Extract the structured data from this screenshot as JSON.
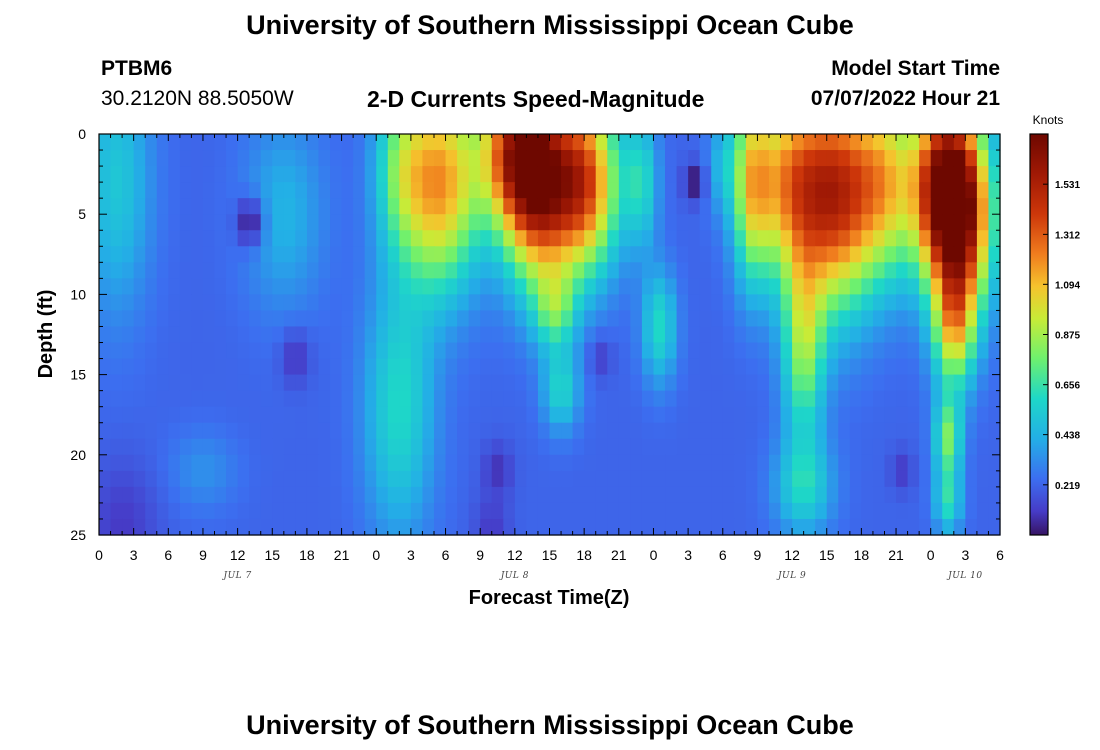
{
  "page": {
    "title_top": "University of Southern Mississippi Ocean Cube",
    "title_bottom": "University of Southern Mississippi Ocean Cube",
    "station_id": "PTBM6",
    "station_coords": "30.2120N  88.5050W",
    "plot_title": "2-D Currents Speed-Magnitude",
    "model_start_label": "Model Start Time",
    "model_start_value": "07/07/2022 Hour 21"
  },
  "chart_data": {
    "type": "heatmap",
    "title": "2-D Currents Speed-Magnitude",
    "xlabel": "Forecast Time(Z)",
    "ylabel": "Depth (ft)",
    "x_tick_labels": [
      "0",
      "3",
      "6",
      "9",
      "12",
      "15",
      "18",
      "21",
      "0",
      "3",
      "6",
      "9",
      "12",
      "15",
      "18",
      "21",
      "0",
      "3",
      "6",
      "9",
      "12",
      "15",
      "18",
      "21",
      "0",
      "3",
      "6"
    ],
    "day_labels": [
      {
        "label": "JUL 7",
        "hour": 12
      },
      {
        "label": "JUL 8",
        "hour": 36
      },
      {
        "label": "JUL 9",
        "hour": 60
      },
      {
        "label": "JUL 10",
        "hour": 75
      }
    ],
    "y_ticks": [
      0,
      5,
      10,
      15,
      20,
      25
    ],
    "xlim": [
      0,
      78
    ],
    "ylim": [
      0,
      25
    ],
    "colorbar": {
      "unit": "Knots",
      "ticks": [
        0.219,
        0.438,
        0.656,
        0.875,
        1.094,
        1.312,
        1.531
      ],
      "range": [
        0,
        1.75
      ]
    },
    "features": [
      {
        "h": 1.5,
        "d": 3,
        "sh": 3,
        "sd": 8,
        "a": 0.3
      },
      {
        "h": 16,
        "d": 5,
        "sh": 3.5,
        "sd": 6,
        "a": 0.22
      },
      {
        "h": 26,
        "d": 2,
        "sh": 2.2,
        "sd": 5,
        "a": 0.35
      },
      {
        "h": 26,
        "d": 17,
        "sh": 3,
        "sd": 8,
        "a": 0.38
      },
      {
        "h": 29.5,
        "d": 3,
        "sh": 3.5,
        "sd": 6.5,
        "a": 0.95
      },
      {
        "h": 36,
        "d": 1,
        "sh": 3,
        "sd": 4.5,
        "a": 0.95
      },
      {
        "h": 38,
        "d": 3.5,
        "sh": 3,
        "sd": 6,
        "a": 1.1
      },
      {
        "h": 42,
        "d": 3,
        "sh": 3,
        "sd": 5.5,
        "a": 1.1
      },
      {
        "h": 39.5,
        "d": 11,
        "sh": 1.8,
        "sd": 2.5,
        "a": 0.4
      },
      {
        "h": 40,
        "d": 16,
        "sh": 1.6,
        "sd": 2.5,
        "a": 0.35
      },
      {
        "h": 47,
        "d": 3,
        "sh": 1.4,
        "sd": 4,
        "a": 0.35
      },
      {
        "h": 48.5,
        "d": 12,
        "sh": 1.5,
        "sd": 3.5,
        "a": 0.38
      },
      {
        "h": 54,
        "d": 2,
        "sh": 1.3,
        "sd": 3,
        "a": 0.2
      },
      {
        "h": 56.5,
        "d": 3,
        "sh": 1.6,
        "sd": 6,
        "a": 0.6
      },
      {
        "h": 60,
        "d": 3,
        "sh": 3.5,
        "sd": 6,
        "a": 0.95
      },
      {
        "h": 64,
        "d": 4,
        "sh": 3,
        "sd": 7,
        "a": 0.95
      },
      {
        "h": 61,
        "d": 13,
        "sh": 1.8,
        "sd": 6,
        "a": 0.6
      },
      {
        "h": 61,
        "d": 22,
        "sh": 2.5,
        "sd": 3,
        "a": 0.35
      },
      {
        "h": 68,
        "d": 3,
        "sh": 3,
        "sd": 6,
        "a": 0.8
      },
      {
        "h": 73,
        "d": 3.5,
        "sh": 2.5,
        "sd": 5.5,
        "a": 1.3
      },
      {
        "h": 75,
        "d": 5,
        "sh": 2.5,
        "sd": 6,
        "a": 1.1
      },
      {
        "h": 74,
        "d": 12,
        "sh": 1.8,
        "sd": 4,
        "a": 0.7
      },
      {
        "h": 73.5,
        "d": 19,
        "sh": 1.2,
        "sd": 2.5,
        "a": 0.55
      },
      {
        "h": 73.5,
        "d": 23,
        "sh": 1.2,
        "sd": 2,
        "a": 0.38
      },
      {
        "h": 9,
        "d": 21,
        "sh": 3,
        "sd": 2.5,
        "a": 0.12
      }
    ],
    "minima": [
      {
        "h": 13,
        "d": 5.5,
        "s": 1.2,
        "v": 0.03
      },
      {
        "h": 17,
        "d": 14,
        "s": 1.3,
        "v": 0.09
      },
      {
        "h": 51.5,
        "d": 3,
        "s": 0.9,
        "v": 0.0
      },
      {
        "h": 43.5,
        "d": 14,
        "s": 1.0,
        "v": 0.12
      },
      {
        "h": 34.5,
        "d": 21,
        "s": 1.3,
        "v": 0.08
      },
      {
        "h": 69.5,
        "d": 21,
        "s": 1.0,
        "v": 0.1
      },
      {
        "h": 2,
        "d": 24.5,
        "s": 3,
        "v": 0.1
      },
      {
        "h": 34,
        "d": 24.5,
        "s": 1.5,
        "v": 0.1
      }
    ],
    "background": 0.22
  }
}
